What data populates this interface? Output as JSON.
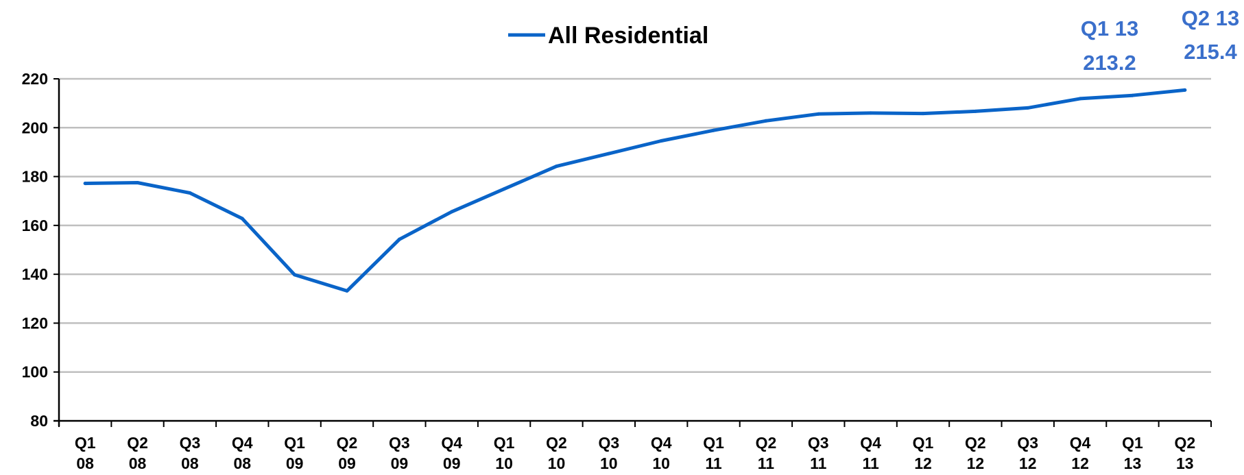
{
  "chart_data": {
    "type": "line",
    "title": "",
    "xlabel": "",
    "ylabel": "",
    "ylim": [
      80,
      220
    ],
    "yticks": [
      80,
      100,
      120,
      140,
      160,
      180,
      200,
      220
    ],
    "grid": true,
    "legend_placement": "top-center",
    "categories": [
      {
        "q": "Q1",
        "y": "08"
      },
      {
        "q": "Q2",
        "y": "08"
      },
      {
        "q": "Q3",
        "y": "08"
      },
      {
        "q": "Q4",
        "y": "08"
      },
      {
        "q": "Q1",
        "y": "09"
      },
      {
        "q": "Q2",
        "y": "09"
      },
      {
        "q": "Q3",
        "y": "09"
      },
      {
        "q": "Q4",
        "y": "09"
      },
      {
        "q": "Q1",
        "y": "10"
      },
      {
        "q": "Q2",
        "y": "10"
      },
      {
        "q": "Q3",
        "y": "10"
      },
      {
        "q": "Q4",
        "y": "10"
      },
      {
        "q": "Q1",
        "y": "11"
      },
      {
        "q": "Q2",
        "y": "11"
      },
      {
        "q": "Q3",
        "y": "11"
      },
      {
        "q": "Q4",
        "y": "11"
      },
      {
        "q": "Q1",
        "y": "12"
      },
      {
        "q": "Q2",
        "y": "12"
      },
      {
        "q": "Q3",
        "y": "12"
      },
      {
        "q": "Q4",
        "y": "12"
      },
      {
        "q": "Q1",
        "y": "13"
      },
      {
        "q": "Q2",
        "y": "13"
      }
    ],
    "series": [
      {
        "name": "All Residential",
        "color": "#0A64C8",
        "values": [
          177.2,
          177.5,
          173.3,
          162.8,
          139.8,
          133.2,
          154.3,
          165.6,
          174.9,
          184.2,
          189.4,
          194.6,
          198.9,
          202.8,
          205.6,
          206.0,
          205.8,
          206.7,
          208.1,
          211.9,
          213.2,
          215.4
        ]
      }
    ],
    "annotations": [
      {
        "label": "Q1 13",
        "value": "213.2",
        "color": "#3A6FCB"
      },
      {
        "label": "Q2 13",
        "value": "215.4",
        "color": "#3A6FCB"
      }
    ]
  }
}
